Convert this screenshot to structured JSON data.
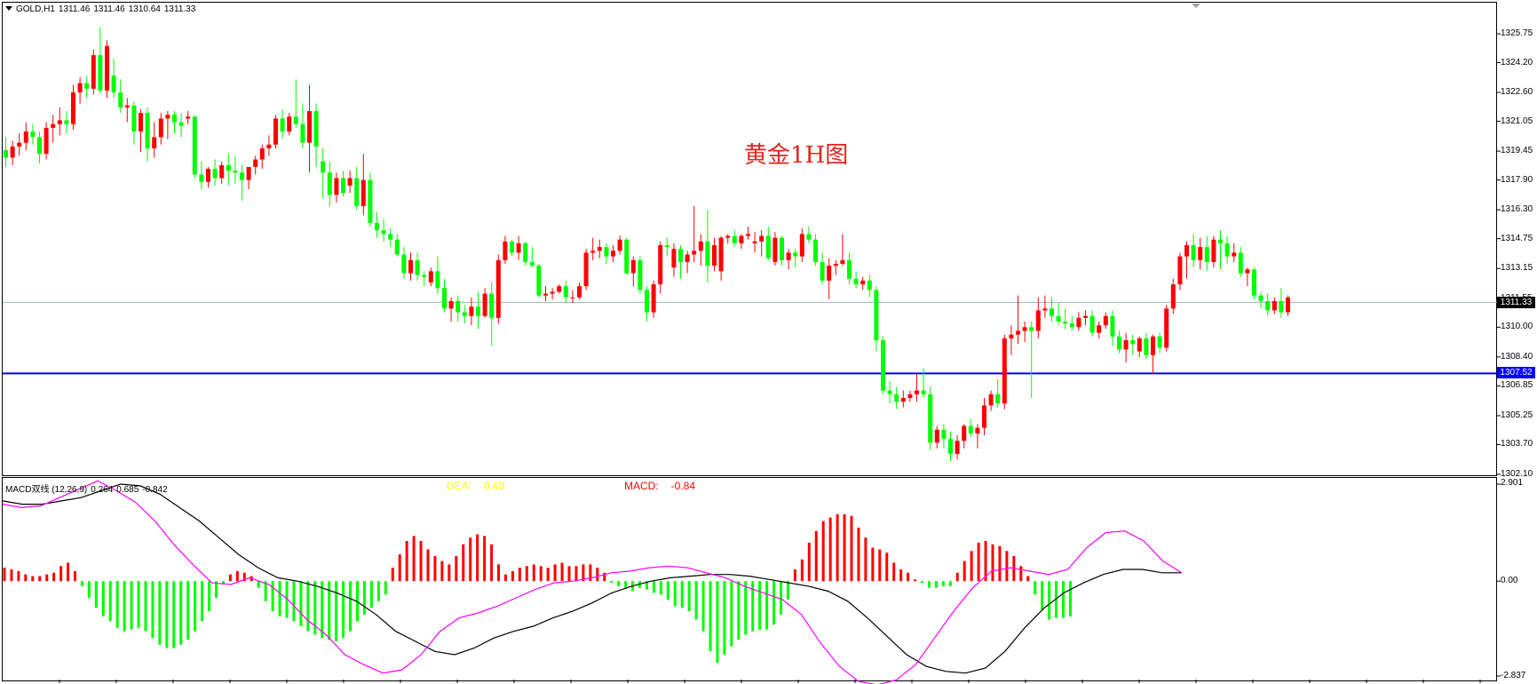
{
  "header": {
    "symbol": "GOLD,H1",
    "open": "1311.46",
    "high": "1311.46",
    "low": "1310.64",
    "close": "1311.33"
  },
  "watermark": "黄金1H图",
  "price_axis": [
    "1325.75",
    "1324.20",
    "1322.60",
    "1321.05",
    "1319.45",
    "1317.90",
    "1316.30",
    "1314.75",
    "1313.15",
    "1311.55",
    "1310.00",
    "1308.40",
    "1306.85",
    "1305.25",
    "1303.70",
    "1302.10"
  ],
  "current_price_tag": "1311.33",
  "level_tag": "1307.52",
  "macd_panel": {
    "title": "MACD双线 (12,26,9)",
    "v1": "0.264",
    "v2": "0.685",
    "v3": "-0.842",
    "dea_label": "DEA:",
    "dea_value": "0.69",
    "macd_label": "MACD:",
    "macd_value": "-0.84",
    "axis": [
      "2.901",
      "0.00",
      "-2.837"
    ]
  },
  "colors": {
    "bull": "#ff0000",
    "bear": "#00ff00",
    "level_line": "#0000ff",
    "price_line": "#a0b4b4",
    "dea_line": "#000000",
    "macd_line": "#ff00ff"
  },
  "chart_data": {
    "type": "candlestick",
    "candles": [
      [
        1319.5,
        1320.2,
        1318.6,
        1319.1
      ],
      [
        1319.1,
        1320.0,
        1318.7,
        1319.7
      ],
      [
        1319.7,
        1320.4,
        1319.2,
        1319.9
      ],
      [
        1319.9,
        1321.0,
        1319.5,
        1320.5
      ],
      [
        1320.5,
        1320.9,
        1319.8,
        1320.2
      ],
      [
        1320.2,
        1320.5,
        1318.8,
        1319.3
      ],
      [
        1319.3,
        1321.0,
        1319.0,
        1320.7
      ],
      [
        1320.7,
        1321.4,
        1319.9,
        1320.9
      ],
      [
        1320.9,
        1321.8,
        1320.3,
        1321.1
      ],
      [
        1321.1,
        1321.6,
        1320.4,
        1320.9
      ],
      [
        1320.9,
        1323.0,
        1320.6,
        1322.6
      ],
      [
        1322.6,
        1323.4,
        1322.0,
        1323.1
      ],
      [
        1323.1,
        1323.5,
        1322.3,
        1322.8
      ],
      [
        1322.8,
        1324.9,
        1322.5,
        1324.6
      ],
      [
        1324.6,
        1326.1,
        1322.5,
        1322.7
      ],
      [
        1322.7,
        1325.4,
        1322.3,
        1325.1
      ],
      [
        1323.5,
        1324.4,
        1322.3,
        1322.6
      ],
      [
        1322.6,
        1323.3,
        1321.5,
        1321.8
      ],
      [
        1321.8,
        1322.3,
        1321.0,
        1321.9
      ],
      [
        1321.9,
        1322.1,
        1319.8,
        1320.5
      ],
      [
        1320.5,
        1321.7,
        1319.4,
        1321.5
      ],
      [
        1321.5,
        1321.8,
        1318.9,
        1319.6
      ],
      [
        1319.6,
        1321.0,
        1319.1,
        1320.2
      ],
      [
        1320.2,
        1321.5,
        1319.8,
        1321.2
      ],
      [
        1321.2,
        1321.6,
        1320.1,
        1321.4
      ],
      [
        1321.4,
        1321.6,
        1320.4,
        1321.0
      ],
      [
        1321.0,
        1321.5,
        1320.2,
        1320.8
      ],
      [
        1321.2,
        1321.6,
        1320.9,
        1321.3
      ],
      [
        1321.3,
        1321.4,
        1318.0,
        1318.2
      ],
      [
        1318.2,
        1318.9,
        1317.4,
        1317.8
      ],
      [
        1317.8,
        1318.6,
        1317.5,
        1318.5
      ],
      [
        1318.5,
        1319.0,
        1317.6,
        1318.0
      ],
      [
        1318.0,
        1318.9,
        1317.7,
        1318.7
      ],
      [
        1318.7,
        1319.3,
        1317.6,
        1318.4
      ],
      [
        1318.4,
        1319.2,
        1317.7,
        1318.3
      ],
      [
        1318.3,
        1318.7,
        1316.8,
        1317.9
      ],
      [
        1317.9,
        1318.6,
        1317.4,
        1318.6
      ],
      [
        1318.6,
        1319.2,
        1318.2,
        1319.0
      ],
      [
        1319.0,
        1319.8,
        1318.5,
        1319.6
      ],
      [
        1319.6,
        1320.3,
        1319.2,
        1319.8
      ],
      [
        1319.8,
        1321.4,
        1319.6,
        1321.2
      ],
      [
        1321.2,
        1321.7,
        1320.1,
        1320.5
      ],
      [
        1320.5,
        1321.5,
        1320.3,
        1321.3
      ],
      [
        1321.3,
        1323.3,
        1320.7,
        1320.9
      ],
      [
        1320.9,
        1322.0,
        1319.6,
        1319.9
      ],
      [
        1319.9,
        1323.0,
        1318.3,
        1321.6
      ],
      [
        1321.6,
        1322.0,
        1318.6,
        1319.7
      ],
      [
        1318.9,
        1319.6,
        1316.9,
        1318.3
      ],
      [
        1318.3,
        1318.9,
        1316.5,
        1317.1
      ],
      [
        1317.1,
        1318.3,
        1316.7,
        1318.0
      ],
      [
        1318.0,
        1318.4,
        1317.0,
        1317.2
      ],
      [
        1317.6,
        1318.4,
        1317.2,
        1318.0
      ],
      [
        1318.0,
        1318.6,
        1316.3,
        1316.5
      ],
      [
        1316.5,
        1319.3,
        1316.0,
        1317.9
      ],
      [
        1317.9,
        1318.3,
        1315.4,
        1315.6
      ],
      [
        1315.6,
        1316.2,
        1314.8,
        1315.2
      ],
      [
        1315.2,
        1315.8,
        1314.6,
        1315.0
      ],
      [
        1315.0,
        1315.3,
        1314.3,
        1314.7
      ],
      [
        1314.7,
        1315.0,
        1313.8,
        1313.9
      ],
      [
        1313.9,
        1314.3,
        1312.6,
        1312.9
      ],
      [
        1312.9,
        1314.0,
        1312.5,
        1313.6
      ],
      [
        1313.6,
        1314.0,
        1312.5,
        1312.8
      ],
      [
        1312.8,
        1313.0,
        1312.2,
        1312.7
      ],
      [
        1312.4,
        1313.2,
        1312.2,
        1313.0
      ],
      [
        1313.0,
        1313.8,
        1311.8,
        1312.1
      ],
      [
        1312.1,
        1312.6,
        1310.8,
        1311.0
      ],
      [
        1311.0,
        1311.6,
        1310.3,
        1311.4
      ],
      [
        1311.4,
        1311.7,
        1310.3,
        1310.8
      ],
      [
        1310.8,
        1311.2,
        1310.2,
        1310.6
      ],
      [
        1310.6,
        1311.6,
        1310.1,
        1311.1
      ],
      [
        1311.1,
        1311.9,
        1309.9,
        1310.6
      ],
      [
        1310.6,
        1312.1,
        1310.5,
        1311.8
      ],
      [
        1311.8,
        1312.4,
        1309.0,
        1310.5
      ],
      [
        1310.5,
        1313.9,
        1310.2,
        1313.6
      ],
      [
        1313.6,
        1314.9,
        1313.4,
        1314.6
      ],
      [
        1314.6,
        1314.7,
        1313.8,
        1314.0
      ],
      [
        1314.0,
        1314.9,
        1313.6,
        1314.5
      ],
      [
        1314.5,
        1314.6,
        1313.3,
        1313.5
      ],
      [
        1313.5,
        1314.3,
        1313.2,
        1313.3
      ],
      [
        1313.3,
        1313.4,
        1311.6,
        1311.7
      ],
      [
        1311.7,
        1312.2,
        1311.4,
        1311.8
      ],
      [
        1311.8,
        1312.1,
        1311.5,
        1311.9
      ],
      [
        1311.9,
        1312.3,
        1311.8,
        1312.2
      ],
      [
        1312.2,
        1312.5,
        1311.3,
        1311.6
      ],
      [
        1311.6,
        1312.0,
        1311.3,
        1311.6
      ],
      [
        1311.6,
        1312.4,
        1311.5,
        1312.2
      ],
      [
        1312.2,
        1314.2,
        1312.0,
        1314.0
      ],
      [
        1314.0,
        1314.8,
        1313.6,
        1314.1
      ],
      [
        1314.1,
        1314.7,
        1313.7,
        1314.3
      ],
      [
        1314.3,
        1314.5,
        1313.4,
        1313.8
      ],
      [
        1313.8,
        1314.4,
        1313.5,
        1314.1
      ],
      [
        1314.1,
        1314.9,
        1313.9,
        1314.7
      ],
      [
        1314.7,
        1314.8,
        1312.8,
        1312.9
      ],
      [
        1312.9,
        1313.8,
        1312.2,
        1313.6
      ],
      [
        1313.6,
        1313.8,
        1311.8,
        1312.0
      ],
      [
        1312.0,
        1312.2,
        1310.3,
        1310.8
      ],
      [
        1310.8,
        1312.5,
        1310.5,
        1312.3
      ],
      [
        1312.3,
        1314.6,
        1311.8,
        1314.4
      ],
      [
        1314.4,
        1314.8,
        1313.8,
        1314.3
      ],
      [
        1313.2,
        1314.5,
        1312.7,
        1314.2
      ],
      [
        1314.2,
        1314.4,
        1312.6,
        1313.5
      ],
      [
        1313.5,
        1314.1,
        1312.9,
        1313.9
      ],
      [
        1313.9,
        1316.5,
        1313.5,
        1314.1
      ],
      [
        1314.1,
        1315.0,
        1313.3,
        1314.6
      ],
      [
        1314.6,
        1316.3,
        1312.4,
        1313.3
      ],
      [
        1313.3,
        1314.8,
        1313.0,
        1314.4
      ],
      [
        1313.0,
        1314.9,
        1312.5,
        1314.8
      ],
      [
        1314.8,
        1315.0,
        1314.5,
        1314.9
      ],
      [
        1314.9,
        1315.2,
        1314.3,
        1314.5
      ],
      [
        1314.5,
        1315.0,
        1314.2,
        1314.9
      ],
      [
        1314.9,
        1315.4,
        1314.7,
        1315.0
      ],
      [
        1314.5,
        1315.1,
        1314.0,
        1314.6
      ],
      [
        1314.6,
        1315.2,
        1313.8,
        1314.9
      ],
      [
        1314.9,
        1315.4,
        1313.6,
        1313.7
      ],
      [
        1313.5,
        1315.1,
        1313.3,
        1314.8
      ],
      [
        1314.8,
        1314.9,
        1313.3,
        1313.6
      ],
      [
        1313.6,
        1314.2,
        1313.1,
        1314.0
      ],
      [
        1314.0,
        1314.2,
        1313.2,
        1313.8
      ],
      [
        1313.8,
        1315.3,
        1313.5,
        1315.0
      ],
      [
        1315.0,
        1315.4,
        1314.5,
        1314.7
      ],
      [
        1314.7,
        1315.0,
        1313.3,
        1313.5
      ],
      [
        1313.5,
        1314.0,
        1312.3,
        1312.5
      ],
      [
        1312.5,
        1313.7,
        1311.5,
        1313.3
      ],
      [
        1313.3,
        1313.6,
        1312.8,
        1313.4
      ],
      [
        1313.4,
        1315.0,
        1313.3,
        1313.6
      ],
      [
        1313.6,
        1314.0,
        1312.3,
        1312.6
      ],
      [
        1312.6,
        1313.0,
        1312.1,
        1312.3
      ],
      [
        1312.3,
        1312.7,
        1312.0,
        1312.5
      ],
      [
        1312.5,
        1312.8,
        1311.6,
        1312.0
      ],
      [
        1312.0,
        1312.2,
        1308.7,
        1309.3
      ],
      [
        1309.3,
        1309.5,
        1306.4,
        1306.6
      ],
      [
        1306.6,
        1307.1,
        1305.9,
        1306.4
      ],
      [
        1306.4,
        1306.8,
        1305.6,
        1306.0
      ],
      [
        1306.0,
        1306.6,
        1305.7,
        1306.2
      ],
      [
        1306.2,
        1306.6,
        1306.0,
        1306.4
      ],
      [
        1306.4,
        1307.5,
        1306.0,
        1306.6
      ],
      [
        1306.6,
        1307.8,
        1306.2,
        1306.4
      ],
      [
        1306.4,
        1306.8,
        1303.4,
        1303.8
      ],
      [
        1303.8,
        1304.7,
        1303.5,
        1304.5
      ],
      [
        1304.5,
        1304.8,
        1303.5,
        1304.0
      ],
      [
        1304.0,
        1304.4,
        1302.8,
        1303.2
      ],
      [
        1303.2,
        1304.2,
        1302.9,
        1303.9
      ],
      [
        1303.9,
        1304.8,
        1303.5,
        1304.7
      ],
      [
        1304.7,
        1305.1,
        1304.1,
        1304.3
      ],
      [
        1304.3,
        1304.8,
        1303.5,
        1304.6
      ],
      [
        1304.6,
        1306.2,
        1304.2,
        1305.8
      ],
      [
        1305.8,
        1306.6,
        1305.5,
        1306.4
      ],
      [
        1306.4,
        1307.2,
        1305.7,
        1305.9
      ],
      [
        1305.9,
        1309.6,
        1305.6,
        1309.4
      ],
      [
        1309.4,
        1310.1,
        1308.5,
        1309.6
      ],
      [
        1309.6,
        1311.7,
        1309.1,
        1309.8
      ],
      [
        1309.8,
        1310.3,
        1309.2,
        1310.0
      ],
      [
        1310.0,
        1310.3,
        1306.2,
        1309.8
      ],
      [
        1309.8,
        1311.6,
        1309.4,
        1310.9
      ],
      [
        1310.9,
        1311.7,
        1310.5,
        1311.0
      ],
      [
        1311.0,
        1311.6,
        1310.3,
        1310.6
      ],
      [
        1310.6,
        1311.3,
        1310.1,
        1310.3
      ],
      [
        1310.3,
        1311.0,
        1309.9,
        1310.2
      ],
      [
        1310.2,
        1310.6,
        1309.8,
        1310.0
      ],
      [
        1310.0,
        1310.8,
        1309.8,
        1310.5
      ],
      [
        1310.5,
        1310.9,
        1310.1,
        1310.6
      ],
      [
        1310.6,
        1310.9,
        1309.5,
        1309.7
      ],
      [
        1309.7,
        1310.3,
        1309.4,
        1310.1
      ],
      [
        1310.1,
        1310.8,
        1309.9,
        1310.6
      ],
      [
        1310.6,
        1310.9,
        1309.0,
        1309.5
      ],
      [
        1309.5,
        1309.8,
        1308.6,
        1308.8
      ],
      [
        1308.8,
        1309.7,
        1308.1,
        1309.3
      ],
      [
        1309.3,
        1309.6,
        1308.5,
        1309.1
      ],
      [
        1308.7,
        1309.5,
        1308.4,
        1309.4
      ],
      [
        1309.4,
        1309.7,
        1308.3,
        1308.5
      ],
      [
        1308.5,
        1309.6,
        1307.5,
        1309.5
      ],
      [
        1309.5,
        1309.7,
        1308.6,
        1308.9
      ],
      [
        1308.9,
        1311.2,
        1308.7,
        1311.0
      ],
      [
        1311.0,
        1312.6,
        1310.7,
        1312.3
      ],
      [
        1312.3,
        1314.0,
        1312.0,
        1313.8
      ],
      [
        1313.8,
        1314.6,
        1312.6,
        1314.4
      ],
      [
        1314.4,
        1315.0,
        1313.2,
        1313.6
      ],
      [
        1313.6,
        1314.8,
        1313.1,
        1314.3
      ],
      [
        1314.3,
        1314.9,
        1313.0,
        1313.5
      ],
      [
        1313.5,
        1314.9,
        1313.2,
        1314.7
      ],
      [
        1314.7,
        1315.2,
        1313.1,
        1314.5
      ],
      [
        1314.5,
        1314.9,
        1313.4,
        1313.8
      ],
      [
        1313.8,
        1314.5,
        1313.5,
        1314.0
      ],
      [
        1314.0,
        1314.3,
        1312.7,
        1312.9
      ],
      [
        1312.9,
        1313.2,
        1312.2,
        1313.1
      ],
      [
        1313.1,
        1313.2,
        1311.5,
        1311.7
      ],
      [
        1311.7,
        1311.9,
        1311.0,
        1311.4
      ],
      [
        1311.4,
        1311.8,
        1310.6,
        1310.9
      ],
      [
        1310.9,
        1311.6,
        1310.7,
        1311.4
      ],
      [
        1311.4,
        1312.1,
        1310.5,
        1310.8
      ],
      [
        1310.8,
        1311.7,
        1310.6,
        1311.6
      ]
    ],
    "macd_hist": [
      0.4,
      0.35,
      0.3,
      0.2,
      0.15,
      0.15,
      0.2,
      0.25,
      0.45,
      0.55,
      0.3,
      -0.15,
      -0.5,
      -0.8,
      -1.05,
      -1.2,
      -1.4,
      -1.5,
      -1.45,
      -1.4,
      -1.5,
      -1.7,
      -1.9,
      -2.0,
      -2.0,
      -1.9,
      -1.75,
      -1.5,
      -1.2,
      -0.9,
      -0.5,
      -0.1,
      0.2,
      0.3,
      0.25,
      0.15,
      -0.2,
      -0.6,
      -0.9,
      -1.05,
      -1.1,
      -1.2,
      -1.35,
      -1.5,
      -1.6,
      -1.7,
      -1.75,
      -1.8,
      -1.7,
      -1.5,
      -1.2,
      -1.0,
      -0.8,
      -0.6,
      -0.4,
      0.4,
      0.8,
      1.2,
      1.35,
      1.2,
      0.95,
      0.75,
      0.6,
      0.5,
      0.75,
      1.1,
      1.3,
      1.4,
      1.35,
      1.1,
      0.5,
      0.2,
      0.3,
      0.4,
      0.45,
      0.5,
      0.45,
      0.4,
      0.5,
      0.55,
      0.45,
      0.45,
      0.5,
      0.5,
      0.4,
      0.25,
      -0.05,
      -0.15,
      -0.2,
      -0.3,
      -0.2,
      -0.25,
      -0.35,
      -0.4,
      -0.55,
      -0.75,
      -0.8,
      -0.9,
      -1.15,
      -1.5,
      -2.1,
      -2.45,
      -2.2,
      -1.95,
      -1.75,
      -1.6,
      -1.5,
      -1.45,
      -1.45,
      -1.3,
      -1.0,
      -0.55,
      0.35,
      0.65,
      1.15,
      1.5,
      1.8,
      1.9,
      2.0,
      2.0,
      1.95,
      1.6,
      1.3,
      1.0,
      0.95,
      0.85,
      0.55,
      0.35,
      0.25,
      0.05,
      -0.05,
      -0.2,
      -0.2,
      -0.15,
      -0.15,
      0.25,
      0.6,
      0.9,
      1.15,
      1.2,
      1.1,
      1.05,
      0.9,
      0.75,
      0.45,
      0.15,
      -0.4,
      -0.85,
      -1.15,
      -1.1,
      -1.1,
      -1.05
    ],
    "dea_line": [
      2.4,
      2.3,
      2.3,
      2.4,
      2.5,
      2.7,
      2.9,
      2.85,
      2.6,
      2.2,
      1.8,
      1.3,
      0.8,
      0.4,
      0.1,
      0.0,
      -0.15,
      -0.35,
      -0.6,
      -1.0,
      -1.5,
      -1.8,
      -2.1,
      -2.2,
      -2.0,
      -1.7,
      -1.5,
      -1.35,
      -1.1,
      -0.9,
      -0.65,
      -0.35,
      -0.15,
      0.0,
      0.1,
      0.15,
      0.2,
      0.2,
      0.15,
      0.05,
      -0.05,
      -0.15,
      -0.3,
      -0.6,
      -1.1,
      -1.65,
      -2.2,
      -2.55,
      -2.7,
      -2.75,
      -2.6,
      -2.1,
      -1.4,
      -0.8,
      -0.35,
      -0.05,
      0.2,
      0.35,
      0.35,
      0.25,
      0.25
    ],
    "macd_line": [
      2.3,
      2.2,
      2.25,
      2.5,
      2.75,
      3.0,
      2.7,
      2.35,
      1.8,
      1.1,
      0.5,
      -0.05,
      -0.1,
      0.1,
      -0.1,
      -0.55,
      -1.15,
      -1.6,
      -2.2,
      -2.5,
      -2.75,
      -2.65,
      -2.2,
      -1.5,
      -1.1,
      -0.95,
      -0.75,
      -0.5,
      -0.25,
      -0.05,
      0.0,
      0.1,
      0.25,
      0.3,
      0.4,
      0.45,
      0.4,
      0.25,
      0.1,
      -0.15,
      -0.35,
      -0.55,
      -1.0,
      -1.85,
      -2.55,
      -3.0,
      -3.1,
      -2.95,
      -2.5,
      -1.7,
      -0.9,
      -0.2,
      0.3,
      0.4,
      0.3,
      0.2,
      0.35,
      1.0,
      1.45,
      1.5,
      1.2,
      0.6,
      0.25
    ]
  }
}
